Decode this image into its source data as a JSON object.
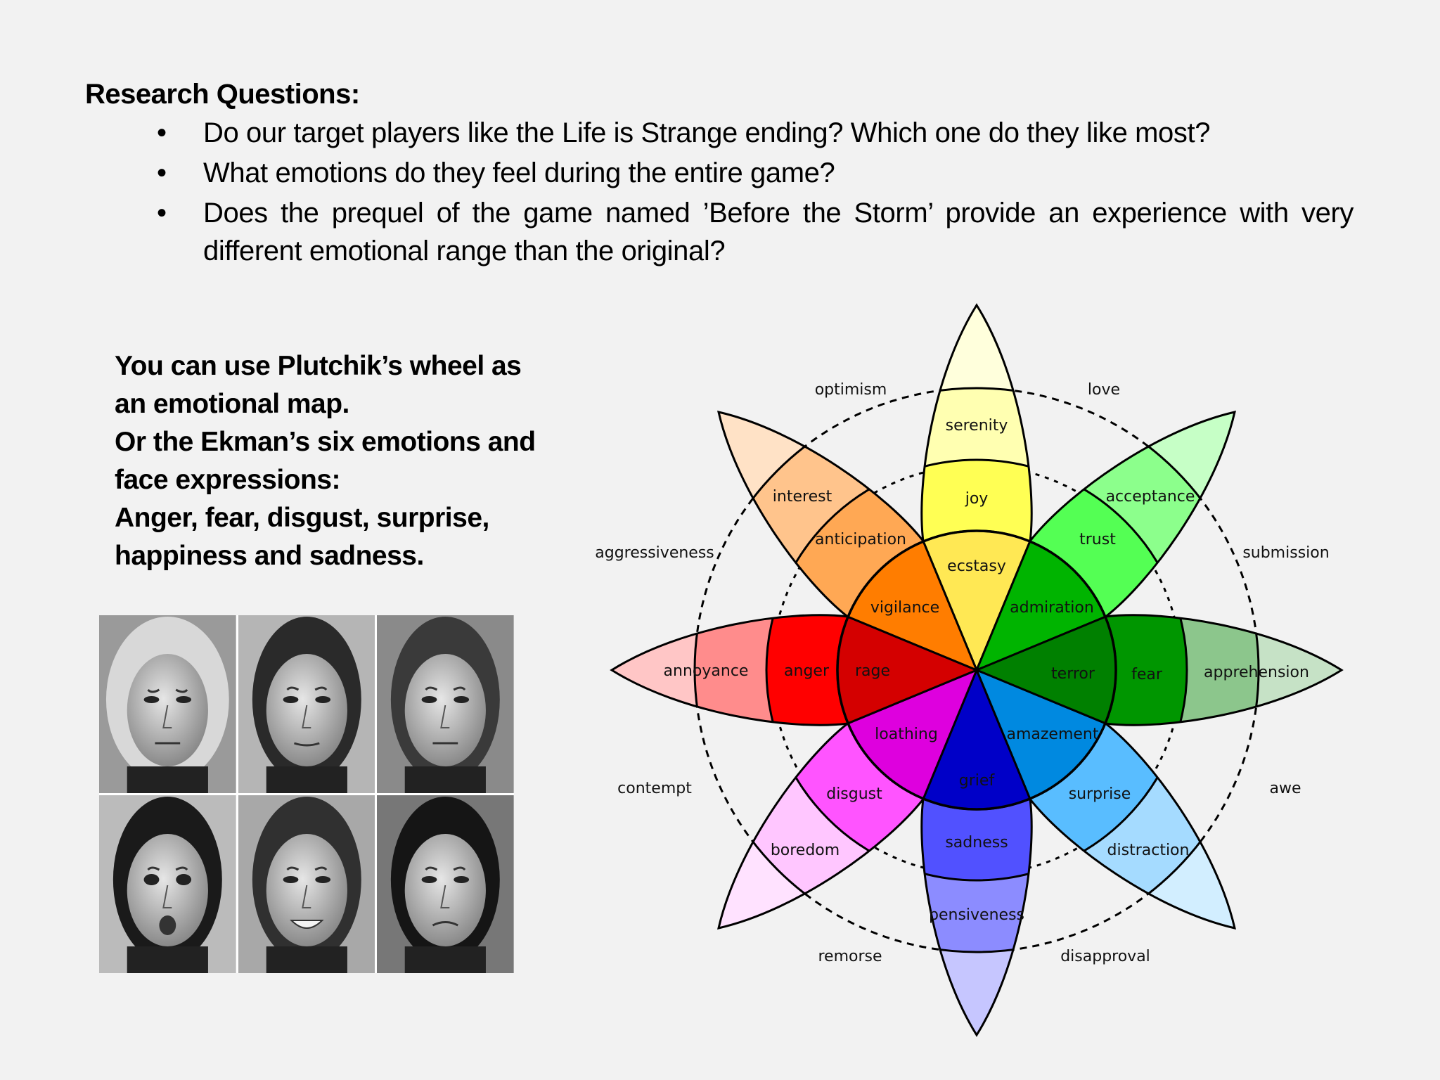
{
  "research": {
    "title": "Research Questions:",
    "bullet": "•",
    "questions": [
      "Do our target players like the Life is Strange ending? Which one do they like most?",
      "What emotions do they feel during the entire game?",
      "Does the prequel of the game named ’Before the Storm’ provide an experience with very different emotional range than the original?"
    ]
  },
  "side_text": {
    "lines": [
      "You can use Plutchik’s wheel as",
      "an emotional map.",
      "Or the Ekman’s six emotions and",
      "face expressions:",
      "Anger, fear, disgust, surprise,",
      "happiness and sadness."
    ]
  },
  "faces": {
    "count": 6,
    "style": "grayscale photographs"
  },
  "wheel": {
    "petals": [
      {
        "labels": [
          "ecstasy",
          "joy",
          "serenity"
        ],
        "colors": [
          "#ffe854",
          "#ffff54",
          "#ffffb1",
          "#ffffdc"
        ]
      },
      {
        "labels": [
          "admiration",
          "trust",
          "acceptance"
        ],
        "colors": [
          "#00b400",
          "#54ff54",
          "#8cff8c",
          "#c6ffc6"
        ]
      },
      {
        "labels": [
          "terror",
          "fear",
          "apprehension"
        ],
        "colors": [
          "#008000",
          "#009600",
          "#8cc68c",
          "#c6e2c6"
        ]
      },
      {
        "labels": [
          "amazement",
          "surprise",
          "distraction"
        ],
        "colors": [
          "#0089e0",
          "#59bdff",
          "#a5dbff",
          "#d2eeff"
        ]
      },
      {
        "labels": [
          "grief",
          "sadness",
          "pensiveness"
        ],
        "colors": [
          "#0000c8",
          "#5151ff",
          "#8c8cff",
          "#c6c6ff"
        ]
      },
      {
        "labels": [
          "loathing",
          "disgust",
          "boredom"
        ],
        "colors": [
          "#de00de",
          "#ff54ff",
          "#ffc6ff",
          "#ffe2ff"
        ]
      },
      {
        "labels": [
          "rage",
          "anger",
          "annoyance"
        ],
        "colors": [
          "#d40000",
          "#ff0000",
          "#ff8c8c",
          "#ffc6c6"
        ]
      },
      {
        "labels": [
          "vigilance",
          "anticipation",
          "interest"
        ],
        "colors": [
          "#ff7d00",
          "#ffa854",
          "#ffc48c",
          "#ffe2c6"
        ]
      }
    ],
    "dyads": [
      "love",
      "submission",
      "awe",
      "disapproval",
      "remorse",
      "contempt",
      "aggressiveness",
      "optimism"
    ]
  }
}
